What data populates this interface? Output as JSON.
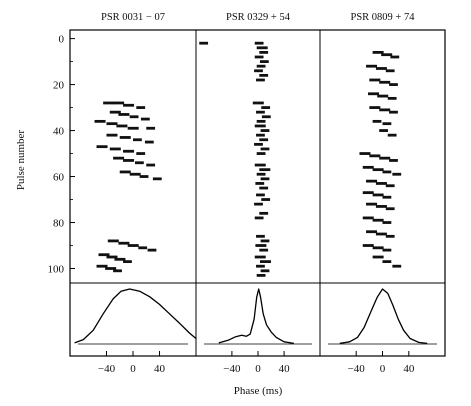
{
  "chart_data": {
    "type": "scatter",
    "panels": [
      {
        "title": "PSR 0031 − 07",
        "bursts": [
          [
            28,
            -45,
            5
          ],
          [
            28,
            -30,
            5
          ],
          [
            29,
            -15,
            5
          ],
          [
            30,
            5,
            4
          ],
          [
            32,
            -35,
            5
          ],
          [
            33,
            -22,
            5
          ],
          [
            34,
            -5,
            4
          ],
          [
            35,
            12,
            4
          ],
          [
            36,
            -58,
            5
          ],
          [
            37,
            -40,
            5
          ],
          [
            38,
            -25,
            5
          ],
          [
            39,
            -8,
            5
          ],
          [
            39,
            20,
            4
          ],
          [
            42,
            -40,
            5
          ],
          [
            43,
            -20,
            5
          ],
          [
            44,
            0,
            4
          ],
          [
            45,
            18,
            4
          ],
          [
            47,
            -55,
            5
          ],
          [
            48,
            -35,
            5
          ],
          [
            49,
            -15,
            5
          ],
          [
            50,
            5,
            4
          ],
          [
            52,
            -30,
            5
          ],
          [
            53,
            -15,
            5
          ],
          [
            54,
            3,
            4
          ],
          [
            55,
            20,
            4
          ],
          [
            58,
            -20,
            5
          ],
          [
            59,
            -5,
            5
          ],
          [
            60,
            10,
            4
          ],
          [
            61,
            30,
            4
          ],
          [
            88,
            -38,
            5
          ],
          [
            89,
            -22,
            5
          ],
          [
            90,
            -8,
            5
          ],
          [
            91,
            8,
            4
          ],
          [
            92,
            22,
            4
          ],
          [
            94,
            -52,
            5
          ],
          [
            95,
            -40,
            5
          ],
          [
            96,
            -28,
            5
          ],
          [
            97,
            -15,
            4
          ],
          [
            99,
            -55,
            5
          ],
          [
            100,
            -42,
            5
          ],
          [
            101,
            -30,
            4
          ]
        ],
        "profile": [
          [
            -88,
            0.02
          ],
          [
            -75,
            0.08
          ],
          [
            -60,
            0.25
          ],
          [
            -45,
            0.55
          ],
          [
            -30,
            0.82
          ],
          [
            -18,
            0.96
          ],
          [
            -5,
            1.0
          ],
          [
            10,
            0.96
          ],
          [
            25,
            0.86
          ],
          [
            40,
            0.72
          ],
          [
            55,
            0.55
          ],
          [
            70,
            0.38
          ],
          [
            85,
            0.2
          ],
          [
            95,
            0.1
          ]
        ]
      },
      {
        "title": "PSR 0329 + 54",
        "bursts": [
          [
            2,
            -90,
            4
          ],
          [
            2,
            -5,
            4
          ],
          [
            4,
            -2,
            5
          ],
          [
            6,
            2,
            4
          ],
          [
            8,
            -5,
            4
          ],
          [
            10,
            3,
            4
          ],
          [
            12,
            -2,
            4
          ],
          [
            14,
            -6,
            4
          ],
          [
            16,
            2,
            4
          ],
          [
            18,
            -3,
            4
          ],
          [
            28,
            -8,
            5
          ],
          [
            30,
            5,
            4
          ],
          [
            32,
            -3,
            4
          ],
          [
            34,
            6,
            4
          ],
          [
            36,
            -2,
            4
          ],
          [
            38,
            -5,
            5
          ],
          [
            40,
            4,
            4
          ],
          [
            42,
            -3,
            4
          ],
          [
            44,
            2,
            4
          ],
          [
            46,
            -6,
            4
          ],
          [
            48,
            4,
            4
          ],
          [
            50,
            -2,
            4
          ],
          [
            55,
            -5,
            5
          ],
          [
            57,
            2,
            5
          ],
          [
            59,
            -2,
            4
          ],
          [
            61,
            4,
            4
          ],
          [
            63,
            -4,
            4
          ],
          [
            65,
            2,
            4
          ],
          [
            68,
            -3,
            4
          ],
          [
            70,
            5,
            4
          ],
          [
            72,
            -6,
            4
          ],
          [
            76,
            2,
            4
          ],
          [
            78,
            -5,
            4
          ],
          [
            86,
            -3,
            4
          ],
          [
            88,
            4,
            4
          ],
          [
            90,
            -4,
            5
          ],
          [
            92,
            2,
            4
          ],
          [
            95,
            -5,
            5
          ],
          [
            97,
            3,
            5
          ],
          [
            99,
            -3,
            4
          ],
          [
            101,
            4,
            4
          ],
          [
            103,
            -2,
            4
          ]
        ],
        "profile": [
          [
            -60,
            0.02
          ],
          [
            -45,
            0.07
          ],
          [
            -35,
            0.13
          ],
          [
            -25,
            0.16
          ],
          [
            -18,
            0.14
          ],
          [
            -12,
            0.18
          ],
          [
            -6,
            0.45
          ],
          [
            -2,
            0.85
          ],
          [
            1,
            1.0
          ],
          [
            4,
            0.85
          ],
          [
            8,
            0.55
          ],
          [
            13,
            0.35
          ],
          [
            20,
            0.22
          ],
          [
            28,
            0.12
          ],
          [
            40,
            0.04
          ],
          [
            55,
            0.01
          ]
        ]
      },
      {
        "title": "PSR 0809 + 74",
        "bursts": [
          [
            6,
            -15,
            5
          ],
          [
            7,
            -2,
            5
          ],
          [
            8,
            12,
            4
          ],
          [
            12,
            -25,
            5
          ],
          [
            13,
            -10,
            5
          ],
          [
            14,
            5,
            4
          ],
          [
            18,
            -20,
            5
          ],
          [
            19,
            -5,
            5
          ],
          [
            20,
            10,
            4
          ],
          [
            24,
            -22,
            5
          ],
          [
            25,
            -8,
            5
          ],
          [
            26,
            8,
            4
          ],
          [
            30,
            -20,
            5
          ],
          [
            31,
            -5,
            5
          ],
          [
            32,
            10,
            4
          ],
          [
            36,
            -15,
            4
          ],
          [
            37,
            0,
            4
          ],
          [
            40,
            -5,
            4
          ],
          [
            42,
            8,
            4
          ],
          [
            50,
            -35,
            5
          ],
          [
            51,
            -20,
            5
          ],
          [
            52,
            -5,
            5
          ],
          [
            53,
            10,
            4
          ],
          [
            56,
            -30,
            5
          ],
          [
            57,
            -15,
            5
          ],
          [
            58,
            0,
            4
          ],
          [
            59,
            15,
            4
          ],
          [
            62,
            -25,
            5
          ],
          [
            63,
            -10,
            5
          ],
          [
            64,
            5,
            4
          ],
          [
            67,
            -30,
            5
          ],
          [
            68,
            -15,
            5
          ],
          [
            69,
            0,
            4
          ],
          [
            72,
            -25,
            5
          ],
          [
            73,
            -10,
            5
          ],
          [
            74,
            5,
            4
          ],
          [
            78,
            -30,
            5
          ],
          [
            79,
            -15,
            5
          ],
          [
            80,
            0,
            4
          ],
          [
            84,
            -25,
            5
          ],
          [
            85,
            -10,
            5
          ],
          [
            86,
            5,
            4
          ],
          [
            90,
            -30,
            5
          ],
          [
            91,
            -15,
            5
          ],
          [
            92,
            0,
            4
          ],
          [
            95,
            -15,
            5
          ],
          [
            97,
            0,
            4
          ],
          [
            99,
            15,
            4
          ]
        ],
        "profile": [
          [
            -65,
            0.01
          ],
          [
            -50,
            0.04
          ],
          [
            -38,
            0.12
          ],
          [
            -28,
            0.3
          ],
          [
            -18,
            0.58
          ],
          [
            -8,
            0.85
          ],
          [
            0,
            1.0
          ],
          [
            8,
            0.92
          ],
          [
            16,
            0.7
          ],
          [
            24,
            0.45
          ],
          [
            32,
            0.25
          ],
          [
            42,
            0.1
          ],
          [
            55,
            0.03
          ],
          [
            68,
            0.01
          ]
        ]
      }
    ],
    "y_ticks": [
      0,
      20,
      40,
      60,
      80,
      100
    ],
    "x_tick_sets": [
      [
        -40,
        0,
        40
      ],
      [
        -40,
        0,
        40
      ],
      [
        -40,
        0,
        40
      ]
    ],
    "ylim": [
      -2,
      105
    ],
    "xlims": [
      [
        -95,
        95
      ],
      [
        -95,
        95
      ],
      [
        -95,
        95
      ]
    ],
    "ylabel": "Pulse number",
    "xlabel": "Phase (ms)"
  }
}
